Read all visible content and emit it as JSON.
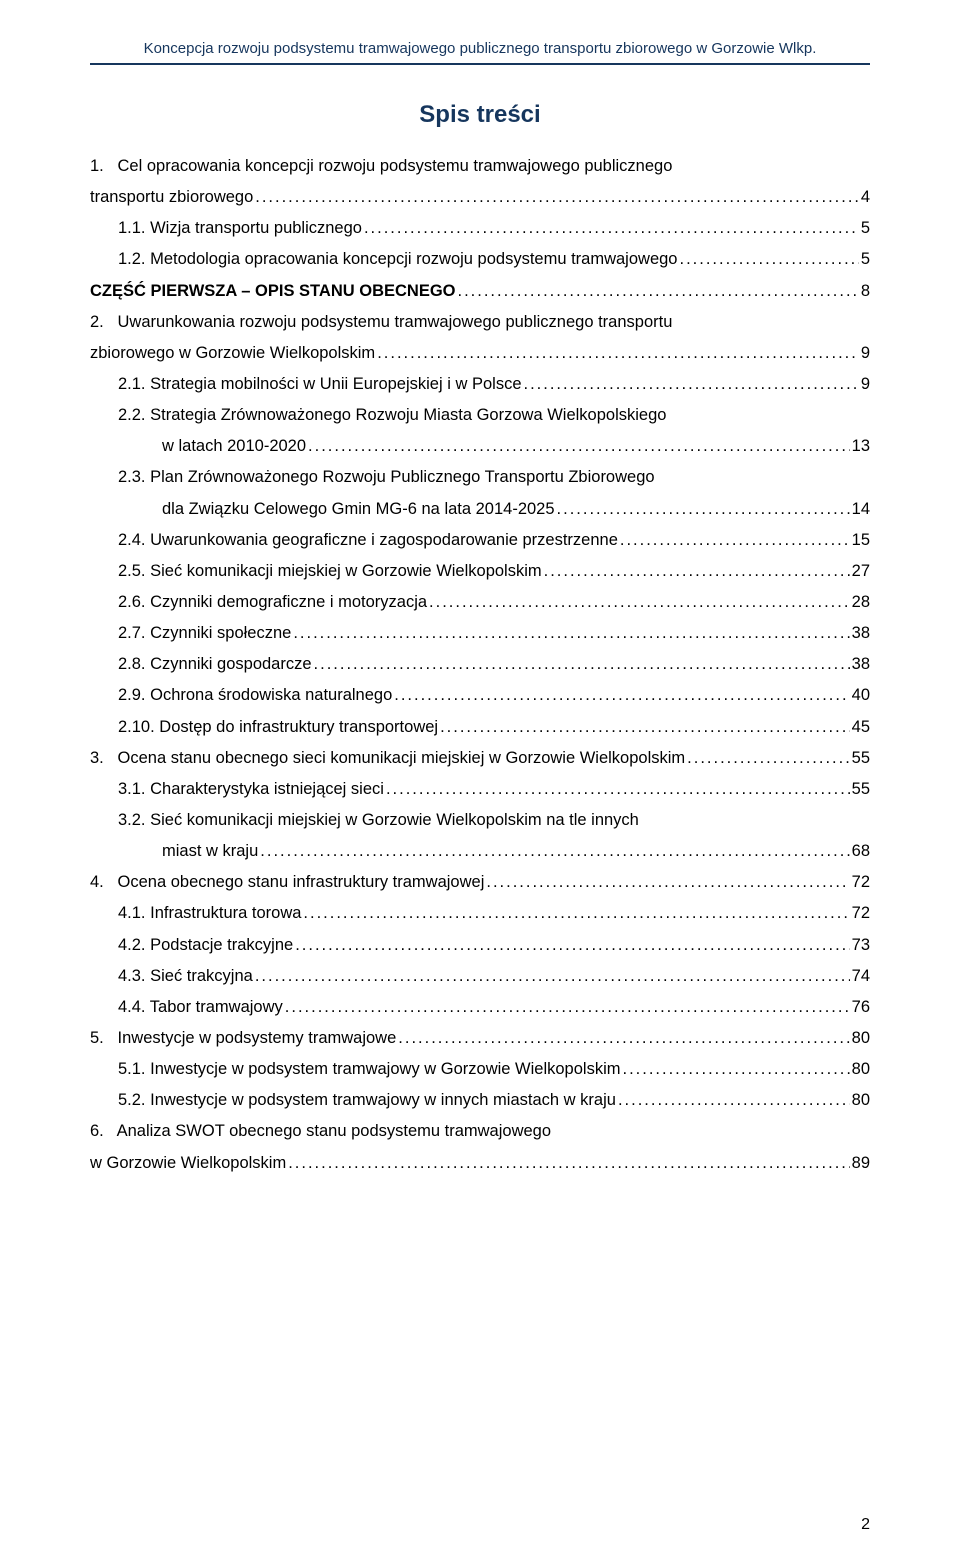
{
  "header": "Koncepcja rozwoju podsystemu tramwajowego publicznego transportu zbiorowego w Gorzowie Wlkp.",
  "title": "Spis treści",
  "page_number": "2",
  "colors": {
    "header_text": "#16365d",
    "body_text": "#000000",
    "background": "#ffffff"
  },
  "toc": [
    {
      "label": "1.   Cel opracowania koncepcji rozwoju podsystemu tramwajowego publicznego",
      "wrap": true
    },
    {
      "label": "transportu zbiorowego",
      "page": "4"
    },
    {
      "label": "1.1. Wizja transportu publicznego",
      "page": "5",
      "indent": 1
    },
    {
      "label": "1.2. Metodologia opracowania koncepcji rozwoju podsystemu tramwajowego",
      "page": "5",
      "indent": 1
    },
    {
      "label": "CZĘŚĆ PIERWSZA – OPIS STANU OBECNEGO",
      "page": "8",
      "caps": true
    },
    {
      "label": "2.   Uwarunkowania rozwoju podsystemu tramwajowego publicznego transportu",
      "wrap": true
    },
    {
      "label": "zbiorowego w Gorzowie Wielkopolskim",
      "page": "9"
    },
    {
      "label": "2.1. Strategia mobilności w Unii Europejskiej i w Polsce",
      "page": "9",
      "indent": 1
    },
    {
      "label": "2.2. Strategia Zrównoważonego Rozwoju Miasta Gorzowa Wielkopolskiego",
      "indent": 1,
      "wrap": true
    },
    {
      "label": "w latach 2010-2020",
      "page": "13",
      "indent": 2
    },
    {
      "label": "2.3. Plan Zrównoważonego Rozwoju Publicznego Transportu Zbiorowego",
      "indent": 1,
      "wrap": true
    },
    {
      "label": "dla Związku Celowego Gmin MG-6 na lata 2014-2025",
      "page": "14",
      "indent": 2
    },
    {
      "label": "2.4. Uwarunkowania geograficzne i zagospodarowanie przestrzenne",
      "page": "15",
      "indent": 1
    },
    {
      "label": "2.5. Sieć komunikacji miejskiej w Gorzowie Wielkopolskim",
      "page": "27",
      "indent": 1
    },
    {
      "label": "2.6. Czynniki demograficzne i motoryzacja",
      "page": "28",
      "indent": 1
    },
    {
      "label": "2.7. Czynniki społeczne",
      "page": "38",
      "indent": 1
    },
    {
      "label": "2.8. Czynniki gospodarcze",
      "page": "38",
      "indent": 1
    },
    {
      "label": "2.9. Ochrona środowiska naturalnego",
      "page": "40",
      "indent": 1
    },
    {
      "label": "2.10. Dostęp do infrastruktury transportowej",
      "page": "45",
      "indent": 1
    },
    {
      "label": "3.   Ocena stanu obecnego sieci komunikacji miejskiej w Gorzowie Wielkopolskim",
      "page": "55"
    },
    {
      "label": "3.1. Charakterystyka istniejącej sieci",
      "page": "55",
      "indent": 1
    },
    {
      "label": "3.2. Sieć komunikacji miejskiej w Gorzowie Wielkopolskim na tle innych",
      "indent": 1,
      "wrap": true
    },
    {
      "label": "miast w kraju",
      "page": "68",
      "indent": 2
    },
    {
      "label": "4.   Ocena obecnego stanu infrastruktury tramwajowej",
      "page": "72"
    },
    {
      "label": "4.1. Infrastruktura torowa",
      "page": "72",
      "indent": 1
    },
    {
      "label": "4.2. Podstacje trakcyjne",
      "page": "73",
      "indent": 1
    },
    {
      "label": "4.3. Sieć trakcyjna",
      "page": "74",
      "indent": 1
    },
    {
      "label": "4.4. Tabor tramwajowy",
      "page": "76",
      "indent": 1
    },
    {
      "label": "5.   Inwestycje w podsystemy tramwajowe",
      "page": "80"
    },
    {
      "label": "5.1. Inwestycje w podsystem tramwajowy w Gorzowie Wielkopolskim",
      "page": "80",
      "indent": 1
    },
    {
      "label": "5.2. Inwestycje w podsystem tramwajowy w innych miastach w kraju",
      "page": "80",
      "indent": 1
    },
    {
      "label": "6.   Analiza SWOT obecnego stanu podsystemu tramwajowego",
      "wrap": true
    },
    {
      "label": "w Gorzowie Wielkopolskim",
      "page": "89"
    }
  ]
}
